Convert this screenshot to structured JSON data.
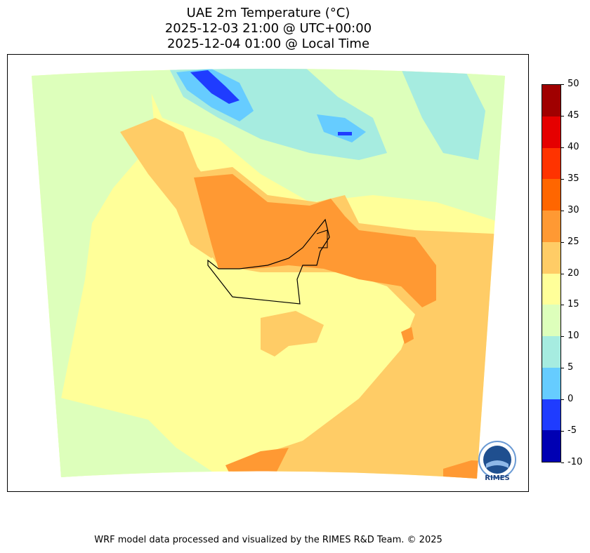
{
  "title": {
    "line1": "UAE 2m Temperature (°C)",
    "line2": "2025-12-03 21:00 @ UTC+00:00",
    "line3": "2025-12-04 01:00 @ Local Time"
  },
  "colorbar": {
    "ticks": [
      "50",
      "45",
      "40",
      "35",
      "30",
      "25",
      "20",
      "15",
      "10",
      "5",
      "0",
      "-5",
      "-10"
    ],
    "colors_top_to_bottom": [
      "#a00000",
      "#e50000",
      "#ff3300",
      "#ff6600",
      "#ff9933",
      "#ffcc66",
      "#ffff99",
      "#ddffbb",
      "#a6ece0",
      "#66ccff",
      "#1f3cff",
      "#0000b3"
    ]
  },
  "legend_colors": {
    "warm_25_30": "#ff9933",
    "mild_20_25": "#ffcc66",
    "pale_15_20": "#ffff99",
    "cool_10_15": "#ddffbb",
    "cold_5_10": "#a6ece0",
    "colder_0_5": "#66ccff",
    "coldest_m5_0": "#1f3cff"
  },
  "logo": {
    "text": "RIMES"
  },
  "footer": {
    "credit": "WRF model data processed and visualized by the RIMES R&D Team. © 2025"
  }
}
